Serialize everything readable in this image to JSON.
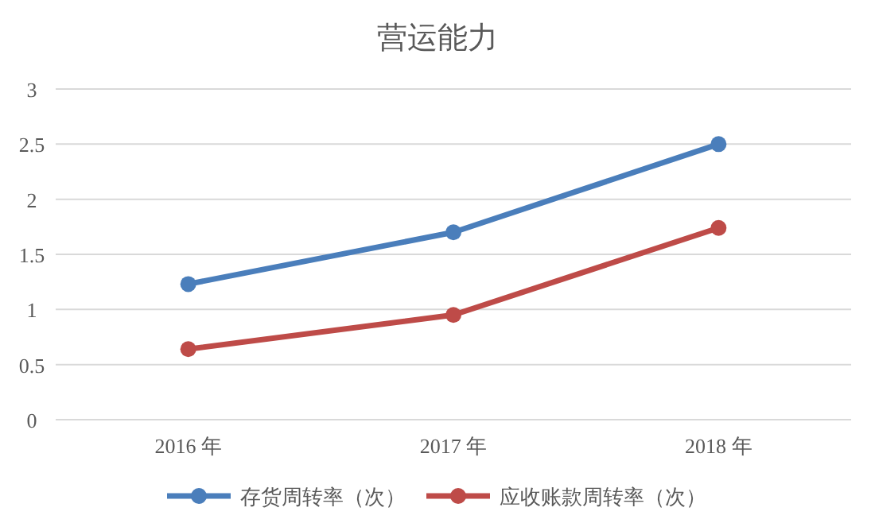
{
  "chart_data": {
    "type": "line",
    "title": "营运能力",
    "categories": [
      "2016 年",
      "2017 年",
      "2018 年"
    ],
    "series": [
      {
        "name": "存货周转率（次）",
        "color": "#4a7ebb",
        "values": [
          1.23,
          1.7,
          2.5
        ]
      },
      {
        "name": "应收账款周转率（次）",
        "color": "#be4b48",
        "values": [
          0.64,
          0.95,
          1.74
        ]
      }
    ],
    "ylim": [
      0,
      3
    ],
    "yticks": [
      0,
      0.5,
      1,
      1.5,
      2,
      2.5,
      3
    ],
    "grid": "y",
    "legend": "bottom",
    "marker": "circle",
    "line_style": "solid"
  }
}
